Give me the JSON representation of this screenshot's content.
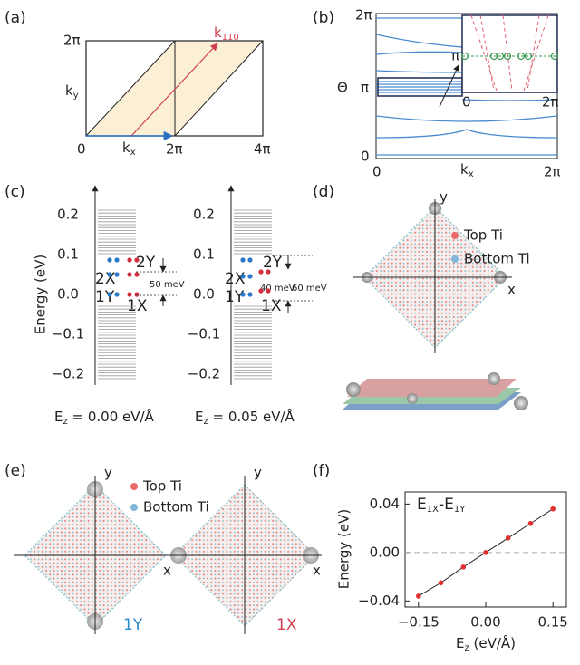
{
  "panel_a": {
    "label": "(a)",
    "y_top": "2π",
    "y_axis": {
      "main": "k",
      "sub": "y"
    },
    "origin": "0",
    "x_axis": {
      "main": "k",
      "sub": "x"
    },
    "x_mid": "2π",
    "x_end": "4π",
    "k_vector": {
      "main": "k",
      "sub": "110"
    }
  },
  "panel_b": {
    "label": "(b)",
    "y_ticks": [
      "2π",
      "π",
      "0"
    ],
    "y_axis": "Θ",
    "x_ticks": [
      "0",
      "2π"
    ],
    "x_axis": {
      "main": "k",
      "sub": "x"
    },
    "inset": {
      "y_tick": "π",
      "x_ticks": [
        "0",
        "2π"
      ]
    }
  },
  "panel_c": {
    "label": "(c)",
    "y_axis": "Energy (eV)",
    "y_ticks": [
      "0.2",
      "0.1",
      "0.0",
      "−0.1",
      "−0.2"
    ],
    "spectra": [
      {
        "states": [
          "2Y",
          "2X",
          "1Y",
          "1X"
        ],
        "splittings": [
          "50 meV"
        ],
        "field": {
          "main": "E",
          "sub": "z",
          "rest": " = 0.00 eV/Å"
        }
      },
      {
        "states": [
          "2Y",
          "2X",
          "1Y",
          "1X"
        ],
        "splittings": [
          "40 meV",
          "60 meV"
        ],
        "field": {
          "main": "E",
          "sub": "z",
          "rest": " = 0.05 eV/Å"
        }
      }
    ]
  },
  "panel_d": {
    "label": "(d)",
    "axes": [
      "y",
      "x"
    ],
    "legend": [
      "Top Ti",
      "Bottom Ti"
    ]
  },
  "panel_e": {
    "label": "(e)",
    "maps": [
      {
        "axes": [
          "y",
          "x"
        ],
        "state": "1Y"
      },
      {
        "axes": [
          "y",
          "x"
        ],
        "state": "1X"
      }
    ],
    "legend": [
      "Top Ti",
      "Bottom Ti"
    ]
  },
  "chart_data": {
    "type": "line",
    "label": "(f)",
    "title": {
      "main": "E",
      "sub1": "1X",
      "mid": "-E",
      "sub2": "1Y"
    },
    "x_label": {
      "main": "E",
      "sub": "z",
      "rest": " (eV/Å)"
    },
    "y_label": "Energy (eV)",
    "x": [
      -0.15,
      -0.1,
      -0.05,
      0,
      0.05,
      0.1,
      0.15
    ],
    "values": [
      -0.036,
      -0.025,
      -0.012,
      0,
      0.012,
      0.024,
      0.036
    ],
    "color": "#222222",
    "marker_color": "#e03030",
    "xlim": [
      -0.18,
      0.18
    ],
    "xticks": [
      {
        "value": -0.15,
        "label": "−0.15"
      },
      {
        "value": 0,
        "label": "0.00"
      },
      {
        "value": 0.15,
        "label": "0.15"
      }
    ],
    "ylim": [
      -0.045,
      0.05
    ],
    "yticks": [
      {
        "value": -0.04,
        "label": "−0.04"
      },
      {
        "value": 0,
        "label": "0.00"
      },
      0.04
    ],
    "reference_line": 0
  }
}
